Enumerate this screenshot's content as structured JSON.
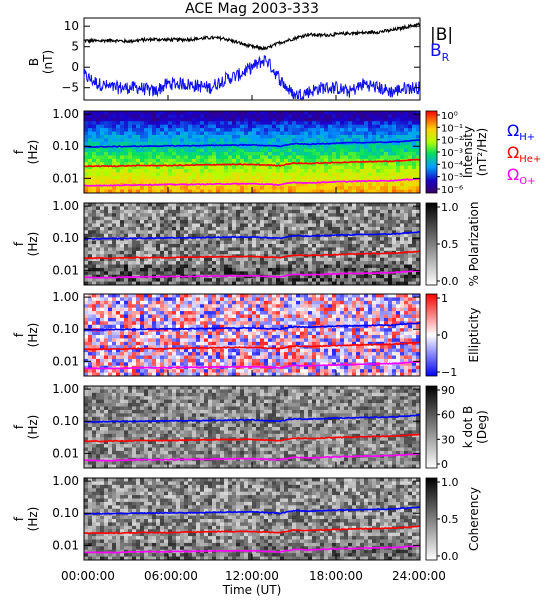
{
  "title": "ACE Mag 2003-333",
  "xaxis": {
    "label": "Time (UT)",
    "ticks": [
      "00:00:00",
      "06:00:00",
      "12:00:00",
      "18:00:00",
      "24:00:00"
    ]
  },
  "colors": {
    "B_total": "#000000",
    "B_R": "#1010ee",
    "H": "#0000ff",
    "He": "#ff0000",
    "O": "#ff00ff"
  },
  "chart_data": [
    {
      "type": "line",
      "panel": "magnetic-field",
      "ylabel_top": "B",
      "ylabel_bottom": "(nT)",
      "ylim": [
        -8,
        12
      ],
      "yticks": [
        -5,
        0,
        5,
        10
      ],
      "legend": [
        {
          "text": "|B|",
          "color": "#000000"
        },
        {
          "text": "B",
          "sub": "R",
          "color": "#1010ee"
        }
      ],
      "series": [
        {
          "name": "|B|",
          "x_hours": [
            0,
            1,
            2,
            3,
            4,
            5,
            6,
            7,
            8,
            9,
            10,
            11,
            12,
            13,
            14,
            15,
            16,
            17,
            18,
            19,
            20,
            21,
            22,
            23,
            24
          ],
          "values": [
            6.5,
            6.4,
            6.6,
            6.3,
            6.6,
            6.8,
            6.7,
            6.7,
            6.9,
            7.2,
            7.0,
            6.0,
            5.0,
            4.5,
            6.0,
            7.0,
            8.0,
            7.8,
            8.0,
            8.3,
            8.4,
            8.6,
            9.0,
            9.8,
            10.5
          ]
        },
        {
          "name": "B_R",
          "x_hours": [
            0,
            1,
            2,
            3,
            4,
            5,
            6,
            7,
            8,
            9,
            10,
            11,
            12,
            13,
            14,
            15,
            16,
            17,
            18,
            19,
            20,
            21,
            22,
            23,
            24
          ],
          "values": [
            -2,
            -4,
            -5,
            -5,
            -5,
            -6,
            -4,
            -4,
            -4.5,
            -5,
            -3,
            -2,
            0,
            2,
            -3,
            -7,
            -6,
            -5,
            -5,
            -6,
            -4,
            -5,
            -6,
            -5,
            -5
          ]
        }
      ]
    },
    {
      "type": "heatmap",
      "panel": "intensity",
      "ylabel_top": "f",
      "ylabel_bottom": "(Hz)",
      "yticks": [
        "1.00",
        "0.10",
        "0.01"
      ],
      "colorbar": {
        "label_top": "Intensity",
        "label_bottom": "(nT²/Hz)",
        "ticks": [
          "10⁰",
          "10⁻¹",
          "10⁻²",
          "10⁻³",
          "10⁻⁴",
          "10⁻⁵",
          "10⁻⁶"
        ]
      },
      "legend": [
        {
          "text": "Ω",
          "sub": "H+",
          "color": "#0000ff"
        },
        {
          "text": "Ω",
          "sub": "He+",
          "color": "#ff0000"
        },
        {
          "text": "Ω",
          "sub": "O+",
          "color": "#ff00ff"
        }
      ]
    },
    {
      "type": "heatmap",
      "panel": "polarization",
      "ylabel_top": "f",
      "ylabel_bottom": "(Hz)",
      "yticks": [
        "1.00",
        "0.10",
        "0.01"
      ],
      "colorbar": {
        "label": "% Polarization",
        "ticks": [
          "1.0",
          "0.5",
          "0.0"
        ]
      }
    },
    {
      "type": "heatmap",
      "panel": "ellipticity",
      "ylabel_top": "f",
      "ylabel_bottom": "(Hz)",
      "yticks": [
        "1.00",
        "0.10",
        "0.01"
      ],
      "colorbar": {
        "label": "Ellipticity",
        "ticks": [
          "1",
          "0",
          "−1"
        ]
      }
    },
    {
      "type": "heatmap",
      "panel": "kdotb",
      "ylabel_top": "f",
      "ylabel_bottom": "(Hz)",
      "yticks": [
        "1.00",
        "0.10",
        "0.01"
      ],
      "colorbar": {
        "label_top": "k dot B",
        "label_bottom": "(Deg)",
        "ticks": [
          "90",
          "60",
          "30",
          "0"
        ]
      }
    },
    {
      "type": "heatmap",
      "panel": "coherency",
      "ylabel_top": "f",
      "ylabel_bottom": "(Hz)",
      "yticks": [
        "1.00",
        "0.10",
        "0.01"
      ],
      "colorbar": {
        "label": "Coherency",
        "ticks": [
          "1.0",
          "0.5",
          "0.0"
        ]
      }
    }
  ],
  "gyrofrequency_lines": {
    "x_hours": [
      0,
      2,
      4,
      6,
      8,
      10,
      12,
      14,
      15,
      16,
      18,
      20,
      22,
      24
    ],
    "H_plus_hz": [
      0.095,
      0.097,
      0.1,
      0.102,
      0.104,
      0.108,
      0.11,
      0.1,
      0.12,
      0.115,
      0.125,
      0.13,
      0.135,
      0.155
    ],
    "He_plus_hz": [
      0.024,
      0.024,
      0.025,
      0.025,
      0.026,
      0.027,
      0.027,
      0.025,
      0.03,
      0.029,
      0.031,
      0.033,
      0.034,
      0.039
    ],
    "O_plus_hz": [
      0.006,
      0.006,
      0.0063,
      0.0064,
      0.0065,
      0.0067,
      0.0068,
      0.0063,
      0.0075,
      0.0072,
      0.0078,
      0.0082,
      0.0085,
      0.0097
    ]
  }
}
